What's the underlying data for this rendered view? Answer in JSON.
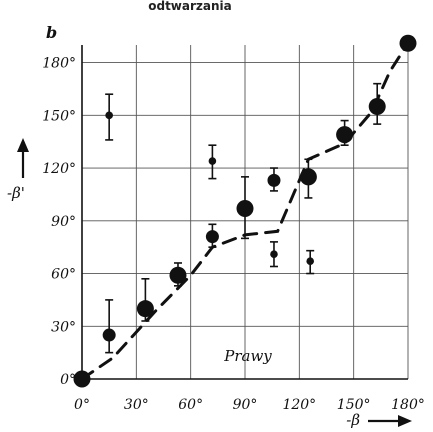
{
  "chart_data": {
    "type": "scatter",
    "panel_label": "b",
    "top_text": "odtwarzania",
    "annotation": "Prawy",
    "xlabel": "-β",
    "ylabel": "-β'",
    "xlim": [
      0,
      180
    ],
    "ylim": [
      0,
      190
    ],
    "grid": true,
    "x_ticks": [
      0,
      30,
      60,
      90,
      120,
      150,
      180
    ],
    "y_ticks": [
      0,
      30,
      60,
      90,
      120,
      150,
      180
    ],
    "x_tick_labels": [
      "0°",
      "30°",
      "60°",
      "90°",
      "120°",
      "150°",
      "180°"
    ],
    "y_tick_labels": [
      "0°",
      "30°",
      "60°",
      "90°",
      "120°",
      "150°",
      "180°"
    ],
    "series": [
      {
        "kind": "points",
        "points": [
          {
            "x": 0,
            "y": 0,
            "size": "large"
          },
          {
            "x": 15,
            "y": 150,
            "err": [
              136,
              162
            ],
            "size": "small"
          },
          {
            "x": 15,
            "y": 25,
            "err": [
              15,
              45
            ],
            "size": "medium"
          },
          {
            "x": 35,
            "y": 40,
            "err": [
              33,
              57
            ],
            "size": "large"
          },
          {
            "x": 53,
            "y": 59,
            "err": [
              53,
              66
            ],
            "size": "large"
          },
          {
            "x": 72,
            "y": 124,
            "err": [
              114,
              133
            ],
            "size": "small"
          },
          {
            "x": 72,
            "y": 81,
            "err": [
              75,
              88
            ],
            "size": "medium"
          },
          {
            "x": 90,
            "y": 97,
            "err": [
              80,
              115
            ],
            "size": "large"
          },
          {
            "x": 106,
            "y": 113,
            "err": [
              107,
              120
            ],
            "size": "medium"
          },
          {
            "x": 106,
            "y": 71,
            "err": [
              64,
              78
            ],
            "size": "small"
          },
          {
            "x": 125,
            "y": 115,
            "err": [
              103,
              125
            ],
            "size": "large"
          },
          {
            "x": 126,
            "y": 67,
            "err": [
              60,
              73
            ],
            "size": "small"
          },
          {
            "x": 145,
            "y": 139,
            "err": [
              133,
              147
            ],
            "size": "large"
          },
          {
            "x": 163,
            "y": 155,
            "err": [
              145,
              168
            ],
            "size": "large"
          },
          {
            "x": 180,
            "y": 191,
            "size": "large"
          }
        ]
      },
      {
        "kind": "dashed-line",
        "x": [
          0,
          17,
          40,
          60,
          72,
          90,
          108,
          125,
          145,
          160,
          170,
          180
        ],
        "y": [
          0,
          12,
          38,
          59,
          75,
          82,
          84,
          125,
          134,
          152,
          175,
          191
        ]
      }
    ]
  }
}
